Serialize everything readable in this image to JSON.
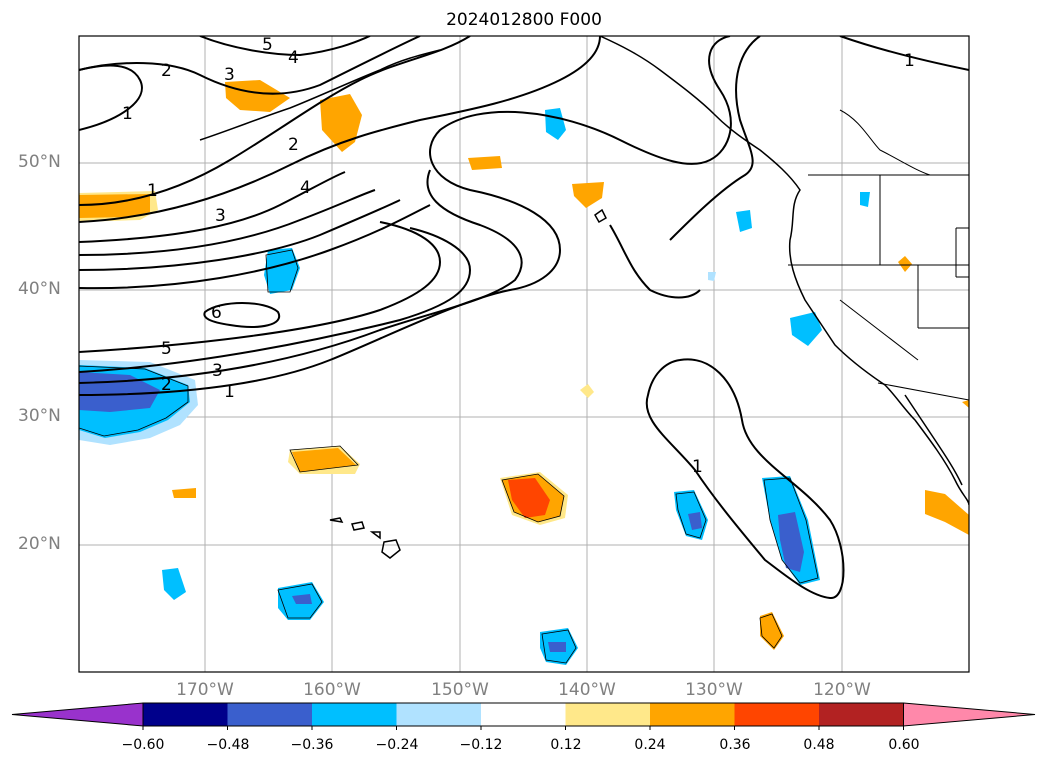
{
  "title": "2024012800 F000",
  "axes": {
    "lat_labels": [
      "50°N",
      "40°N",
      "30°N",
      "20°N"
    ],
    "lon_labels": [
      "170°W",
      "160°W",
      "150°W",
      "140°W",
      "130°W",
      "120°W"
    ]
  },
  "colorbar": {
    "ticks": [
      "−0.60",
      "−0.48",
      "−0.36",
      "−0.24",
      "−0.12",
      "0.12",
      "0.24",
      "0.36",
      "0.48",
      "0.60"
    ],
    "colors": [
      "#9932cc",
      "#00008b",
      "#3a5fcd",
      "#00bfff",
      "#b0e2ff",
      "#ffffff",
      "#ffe88a",
      "#ffa500",
      "#ff4500",
      "#b22222",
      "#ff88aa"
    ]
  },
  "contour_labels": [
    "5",
    "4",
    "2",
    "3",
    "1",
    "2",
    "1",
    "3",
    "4",
    "6",
    "5",
    "3",
    "2",
    "1",
    "1",
    "1"
  ]
}
